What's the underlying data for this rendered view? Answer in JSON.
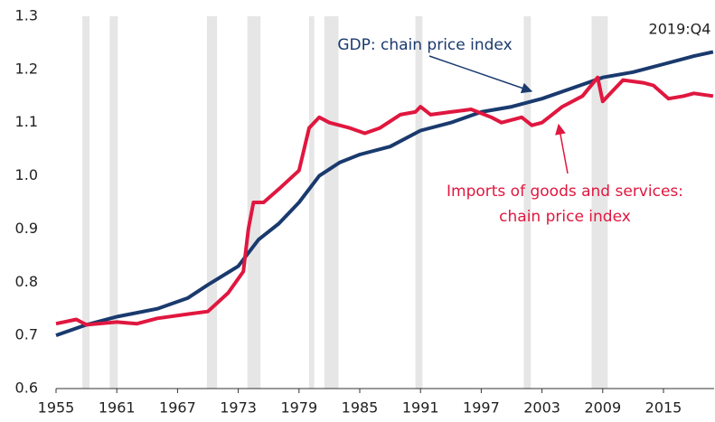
{
  "chart_data": {
    "type": "line",
    "annotations": {
      "gdp": "GDP: chain price index",
      "imports": [
        "Imports of goods and services:",
        "chain price index"
      ],
      "date": "2019:Q4"
    },
    "xlim": [
      1955,
      2020
    ],
    "xticks": [
      1955,
      1961,
      1967,
      1973,
      1979,
      1985,
      1991,
      1997,
      2003,
      2009,
      2015
    ],
    "ylim": [
      0.6,
      1.3
    ],
    "yticks": [
      0.6,
      0.7,
      0.8,
      0.9,
      {
        "value": 1,
        "label": "1.0"
      },
      1.1,
      1.2,
      1.3
    ],
    "grid": false,
    "recession_color": "#e6e6e6",
    "recessions": [
      [
        1957.6,
        1958.3
      ],
      [
        1960.3,
        1961.1
      ],
      [
        1969.9,
        1970.9
      ],
      [
        1973.9,
        1975.2
      ],
      [
        1980.0,
        1980.5
      ],
      [
        1981.5,
        1982.9
      ],
      [
        1990.5,
        1991.2
      ],
      [
        2001.2,
        2001.9
      ],
      [
        2007.9,
        2009.5
      ]
    ],
    "series": [
      {
        "name": "GDP: chain price index",
        "color": "#1a3a6e",
        "x": [
          1955,
          1958,
          1961,
          1965,
          1968,
          1970,
          1973,
          1975,
          1977,
          1979,
          1981,
          1983,
          1985,
          1988,
          1991,
          1994,
          1997,
          2000,
          2003,
          2006,
          2009,
          2012,
          2015,
          2018,
          2019.9
        ],
        "values": [
          0.7,
          0.72,
          0.735,
          0.75,
          0.77,
          0.795,
          0.83,
          0.88,
          0.91,
          0.95,
          1.0,
          1.025,
          1.04,
          1.055,
          1.085,
          1.1,
          1.12,
          1.13,
          1.145,
          1.165,
          1.185,
          1.195,
          1.21,
          1.225,
          1.233
        ]
      },
      {
        "name": "Imports of goods and services: chain price index",
        "color": "#e0173f",
        "x": [
          1955,
          1957,
          1958,
          1961,
          1963,
          1965,
          1968,
          1970,
          1972,
          1973.5,
          1974,
          1974.5,
          1975.5,
          1977,
          1979,
          1980,
          1981,
          1982,
          1984,
          1985.5,
          1987,
          1989,
          1990.5,
          1991,
          1992,
          1994,
          1996,
          1998,
          1999,
          2001,
          2002,
          2003,
          2005,
          2007,
          2008.5,
          2009,
          2010,
          2011,
          2013,
          2014,
          2015.5,
          2017,
          2018,
          2019.9
        ],
        "values": [
          0.722,
          0.73,
          0.72,
          0.725,
          0.722,
          0.732,
          0.74,
          0.745,
          0.78,
          0.82,
          0.9,
          0.95,
          0.95,
          0.975,
          1.01,
          1.09,
          1.11,
          1.1,
          1.09,
          1.08,
          1.09,
          1.115,
          1.12,
          1.13,
          1.115,
          1.12,
          1.125,
          1.11,
          1.1,
          1.11,
          1.095,
          1.1,
          1.13,
          1.15,
          1.185,
          1.14,
          1.16,
          1.18,
          1.175,
          1.17,
          1.145,
          1.15,
          1.155,
          1.15
        ]
      }
    ]
  }
}
